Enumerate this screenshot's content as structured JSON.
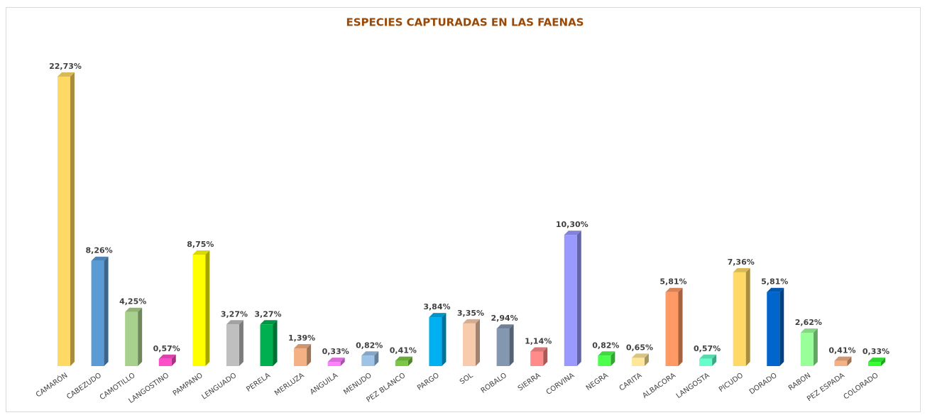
{
  "chart_data": {
    "type": "bar3d",
    "title": "ESPECIES CAPTURADAS EN LAS FAENAS",
    "categories": [
      "CAMARÓN",
      "CABEZUDO",
      "CAMOTILLO",
      "LANGOSTINO",
      "PAMPANO",
      "LENGUADO",
      "PERELA",
      "MERLUZA",
      "ANGUILA",
      "MENUDO",
      "PEZ BLANCO",
      "PARGO",
      "SOL",
      "ROBALO",
      "SIERRA",
      "CORVINA",
      "NEGRA",
      "CARITA",
      "ALBACORA",
      "LANGOSTA",
      "PICUDO",
      "DORADO",
      "RABON",
      "PEZ ESPADA",
      "COLORADO"
    ],
    "values": [
      22.73,
      8.26,
      4.25,
      0.57,
      8.75,
      3.27,
      3.27,
      1.39,
      0.33,
      0.82,
      0.41,
      3.84,
      3.35,
      2.94,
      1.14,
      10.3,
      0.82,
      0.65,
      5.81,
      0.57,
      7.36,
      5.81,
      2.62,
      0.41,
      0.33
    ],
    "value_labels": [
      "22,73%",
      "8,26%",
      "4,25%",
      "0,57%",
      "8,75%",
      "3,27%",
      "3,27%",
      "1,39%",
      "0,33%",
      "0,82%",
      "0,41%",
      "3,84%",
      "3,35%",
      "2,94%",
      "1,14%",
      "10,30%",
      "0,82%",
      "0,65%",
      "5,81%",
      "0,57%",
      "7,36%",
      "5,81%",
      "2,62%",
      "0,41%",
      "0,33%"
    ],
    "colors": [
      "#FFD966",
      "#5B9BD5",
      "#A9D18E",
      "#FF4FC8",
      "#FFFF00",
      "#BFBFBF",
      "#00B050",
      "#F4B183",
      "#FF80FF",
      "#9DC3E6",
      "#7AC943",
      "#00B0F0",
      "#F8CBAD",
      "#8497B0",
      "#FF8B8B",
      "#9999FF",
      "#4CFF4C",
      "#FFE699",
      "#FF9966",
      "#66FFCC",
      "#FFD966",
      "#0066CC",
      "#99FF99",
      "#F4B183",
      "#33FF33"
    ]
  }
}
